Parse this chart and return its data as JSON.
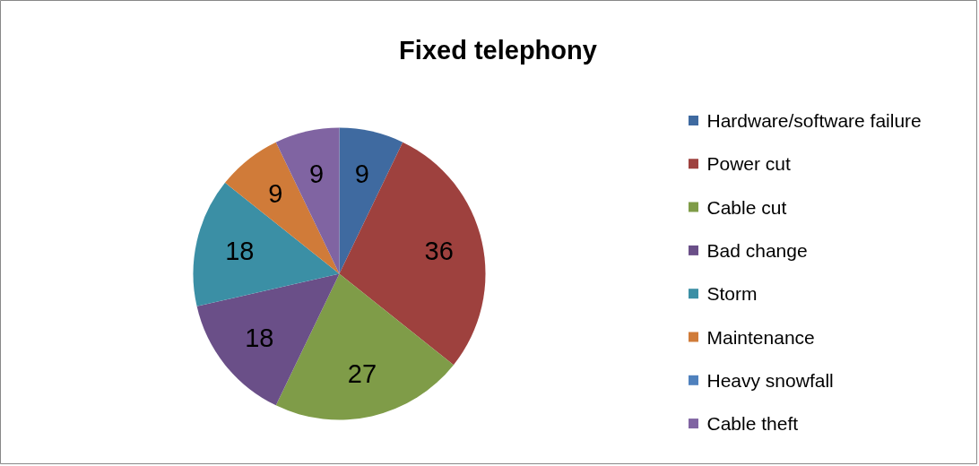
{
  "chart_data": {
    "type": "pie",
    "title": "Fixed telephony",
    "categories": [
      "Hardware/software failure",
      "Power cut",
      "Cable cut",
      "Bad change",
      "Storm",
      "Maintenance",
      "Heavy snowfall",
      "Cable theft"
    ],
    "values": [
      9,
      36,
      27,
      18,
      18,
      9,
      0,
      9
    ],
    "value_labels": [
      "9",
      "36",
      "27",
      "18",
      "18",
      "9",
      null,
      "9"
    ],
    "colors": [
      "#3f6aa0",
      "#9e413e",
      "#7f9c48",
      "#6a4f88",
      "#3b8fa5",
      "#d07b39",
      "#4f81bd",
      "#8064a2"
    ],
    "legend": "right"
  }
}
